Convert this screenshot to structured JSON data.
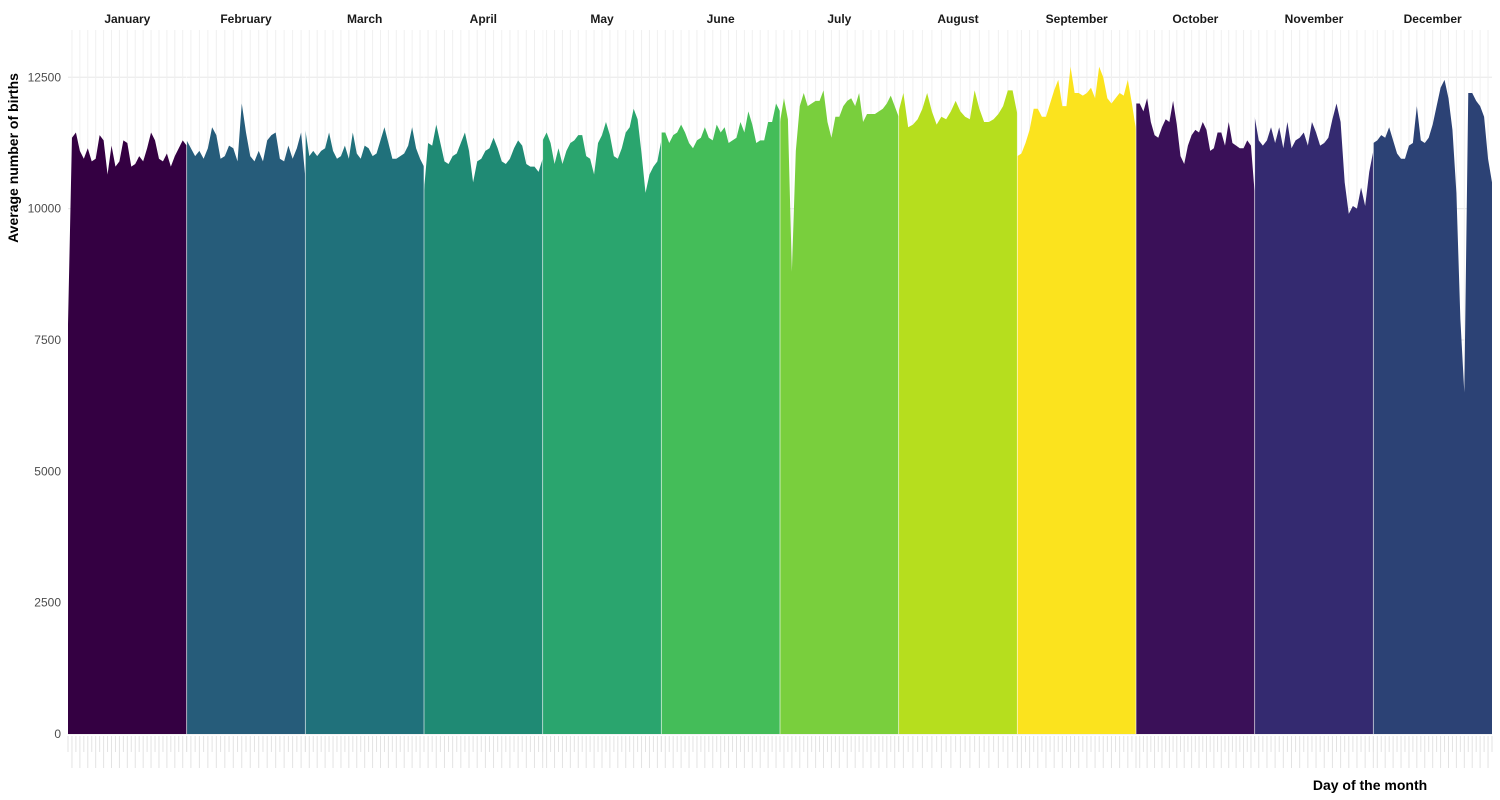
{
  "chart_data": {
    "type": "area",
    "xlabel": "Day of the month",
    "ylabel": "Average number of births",
    "ylim": [
      0,
      13400
    ],
    "yticks": [
      0,
      2500,
      5000,
      7500,
      10000,
      12500
    ],
    "ytick_labels": [
      "0",
      "2500",
      "5000",
      "7500",
      "10000",
      "12500"
    ],
    "grid": true,
    "legend": "none",
    "months": [
      {
        "name": "January",
        "color": "#340042",
        "values": [
          7800,
          11350,
          11450,
          11100,
          10950,
          11150,
          10900,
          10950,
          11400,
          11300,
          10650,
          11200,
          10800,
          10900,
          11300,
          11250,
          10800,
          10850,
          11000,
          10900,
          11150,
          11450,
          11300,
          10950,
          10900,
          11050,
          10800,
          11000,
          11150,
          11300,
          11200
        ]
      },
      {
        "name": "February",
        "color": "#265c7a",
        "values": [
          11300,
          11150,
          11000,
          11100,
          10950,
          11150,
          11550,
          11400,
          10950,
          11000,
          11200,
          11150,
          10900,
          12000,
          11450,
          11000,
          10900,
          11100,
          10900,
          11300,
          11400,
          11450,
          10950,
          10900,
          11200,
          10950,
          11150,
          11450,
          10600
        ]
      },
      {
        "name": "March",
        "color": "#20717b",
        "values": [
          11500,
          11000,
          11100,
          11000,
          11100,
          11150,
          11450,
          11100,
          10950,
          11000,
          11200,
          10950,
          11450,
          11050,
          10950,
          11200,
          11150,
          11000,
          11050,
          11300,
          11550,
          11250,
          10950,
          10950,
          11000,
          11050,
          11200,
          11550,
          11150,
          10950,
          10800
        ]
      },
      {
        "name": "April",
        "color": "#1f8a74",
        "values": [
          10350,
          11250,
          11200,
          11600,
          11250,
          10900,
          10850,
          11000,
          11050,
          11250,
          11450,
          11100,
          10500,
          10900,
          10950,
          11100,
          11150,
          11350,
          11150,
          10900,
          10850,
          10950,
          11150,
          11300,
          11200,
          10850,
          10800,
          10800,
          10700,
          10950
        ]
      },
      {
        "name": "May",
        "color": "#2aa56e",
        "values": [
          11300,
          11450,
          11250,
          10850,
          11150,
          10850,
          11100,
          11250,
          11300,
          11400,
          11400,
          11000,
          10950,
          10650,
          11250,
          11400,
          11650,
          11400,
          11000,
          10950,
          11150,
          11450,
          11550,
          11900,
          11700,
          11050,
          10300,
          10650,
          10800,
          10900,
          11300
        ]
      },
      {
        "name": "June",
        "color": "#44bd59",
        "values": [
          11450,
          11450,
          11250,
          11400,
          11450,
          11600,
          11450,
          11250,
          11150,
          11300,
          11350,
          11550,
          11350,
          11300,
          11600,
          11450,
          11550,
          11250,
          11300,
          11350,
          11650,
          11450,
          11850,
          11600,
          11250,
          11300,
          11300,
          11650,
          11650,
          12000,
          11850
        ]
      },
      {
        "name": "July",
        "color": "#79cf3d",
        "values": [
          11650,
          12100,
          11700,
          8800,
          11100,
          11950,
          12200,
          11950,
          12000,
          12050,
          12050,
          12250,
          11650,
          11350,
          11750,
          11750,
          11950,
          12050,
          12100,
          11950,
          12200,
          11650,
          11800,
          11800,
          11800,
          11850,
          11900,
          12000,
          12150,
          11950,
          11750
        ]
      },
      {
        "name": "August",
        "color": "#b6de1e",
        "values": [
          11850,
          12200,
          11550,
          11600,
          11700,
          11900,
          12200,
          11850,
          11600,
          11750,
          11700,
          11850,
          12050,
          11850,
          11750,
          11700,
          12250,
          11900,
          11650,
          11650,
          11700,
          11800,
          11950,
          12250,
          12250,
          11800
        ]
      },
      {
        "name": "September",
        "color": "#fbe31e",
        "values": [
          11000,
          11050,
          11250,
          11500,
          11900,
          11900,
          11750,
          11750,
          12000,
          12250,
          12450,
          11950,
          11950,
          12700,
          12200,
          12200,
          12150,
          12200,
          12300,
          12100,
          12700,
          12500,
          12100,
          12000,
          12100,
          12200,
          12150,
          12450,
          12000,
          11500
        ]
      },
      {
        "name": "October",
        "color": "#3a1058",
        "values": [
          12000,
          12000,
          11850,
          12100,
          11650,
          11400,
          11350,
          11550,
          11700,
          11650,
          12050,
          11600,
          11000,
          10850,
          11200,
          11400,
          11500,
          11450,
          11650,
          11500,
          11100,
          11150,
          11450,
          11450,
          11200,
          11650,
          11250,
          11200,
          11150,
          11150,
          11300,
          11200,
          10300
        ]
      },
      {
        "name": "November",
        "color": "#342a70",
        "values": [
          11750,
          11300,
          11200,
          11300,
          11550,
          11250,
          11550,
          11150,
          11650,
          11150,
          11300,
          11350,
          11450,
          11200,
          11650,
          11450,
          11200,
          11250,
          11350,
          11700,
          12000,
          11650,
          10500,
          9900,
          10050,
          10000,
          10400,
          10050,
          10700,
          11100
        ]
      },
      {
        "name": "December",
        "color": "#2c4275",
        "values": [
          11250,
          11300,
          11400,
          11350,
          11550,
          11300,
          11050,
          10950,
          10950,
          11200,
          11250,
          11950,
          11300,
          11250,
          11350,
          11600,
          11950,
          12300,
          12450,
          12100,
          11500,
          10300,
          7900,
          6500,
          12200,
          12200,
          12050,
          11950,
          11750,
          10950,
          10500
        ]
      }
    ]
  }
}
